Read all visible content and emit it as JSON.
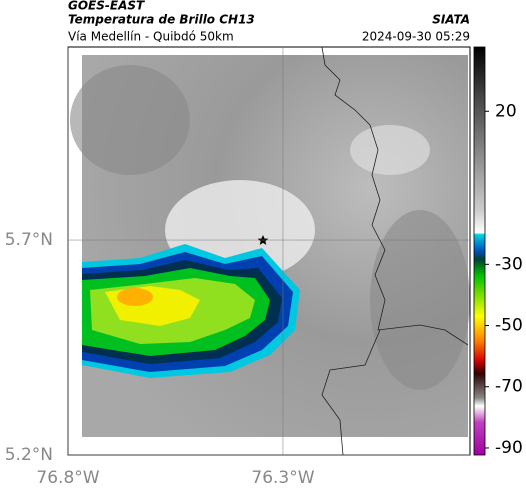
{
  "header": {
    "source": "GOES-EAST",
    "product": "Temperatura de Brillo CH13",
    "route": "Vía Medellín - Quibdó 50km",
    "agency": "SIATA",
    "timestamp": "2024-09-30 05:29"
  },
  "map": {
    "xlim": [
      -76.8,
      -75.865
    ],
    "ylim": [
      5.2,
      6.149
    ],
    "xticks": [
      {
        "value": -76.8,
        "label": "76.8°W"
      },
      {
        "value": -76.3,
        "label": "76.3°W"
      }
    ],
    "yticks": [
      {
        "value": 5.2,
        "label": "5.2°N"
      },
      {
        "value": 5.7,
        "label": "5.7°N"
      }
    ]
  },
  "colorbar": {
    "lim": [
      -92.3,
      41
    ],
    "ticks": [
      20,
      -30,
      -50,
      -70,
      -90
    ]
  }
}
